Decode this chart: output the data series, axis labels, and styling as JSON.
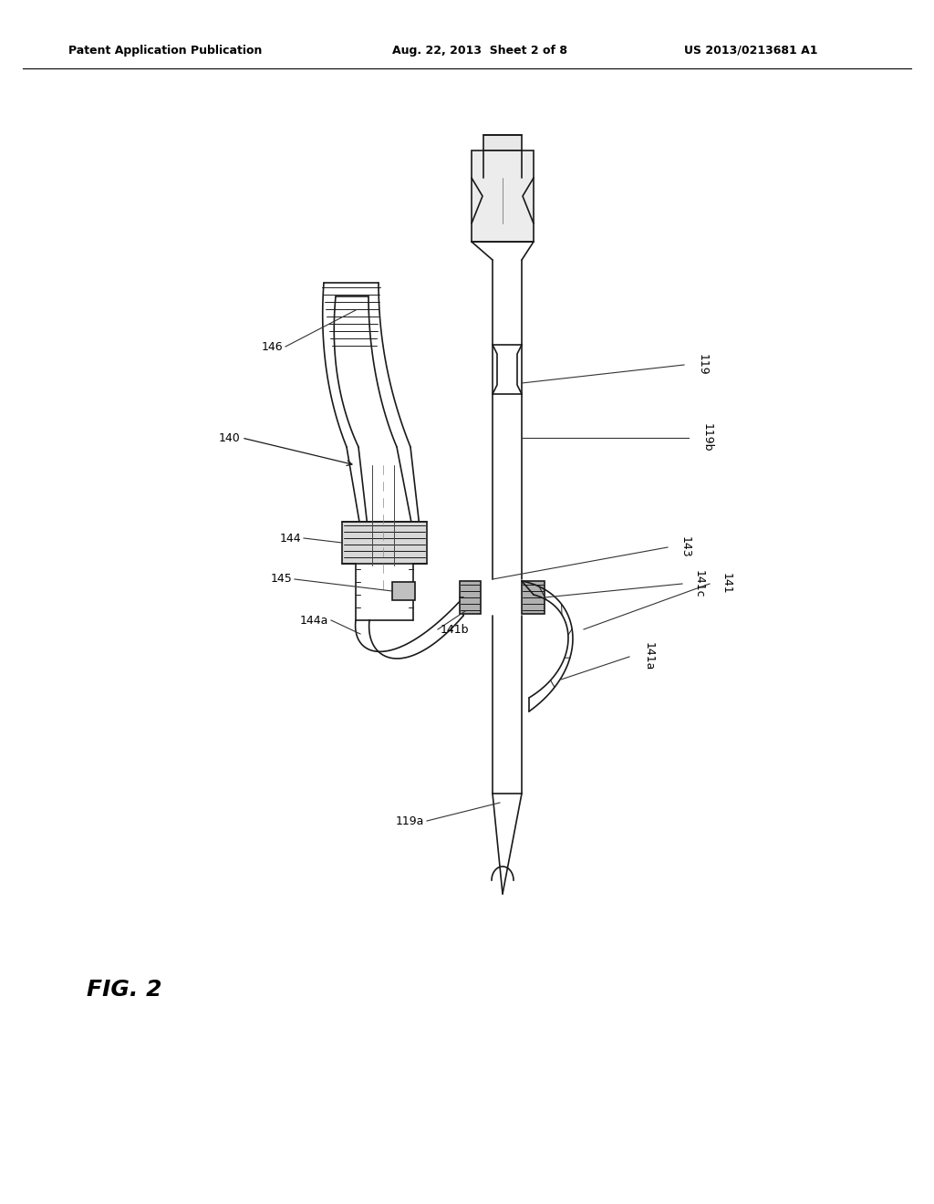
{
  "bg_color": "#ffffff",
  "header_left": "Patent Application Publication",
  "header_center": "Aug. 22, 2013  Sheet 2 of 8",
  "header_right": "US 2013/0213681 A1",
  "fig_label": "FIG. 2",
  "line_color": "#1a1a1a",
  "label_fs": 9,
  "fig_fs": 18,
  "header_fs": 9
}
